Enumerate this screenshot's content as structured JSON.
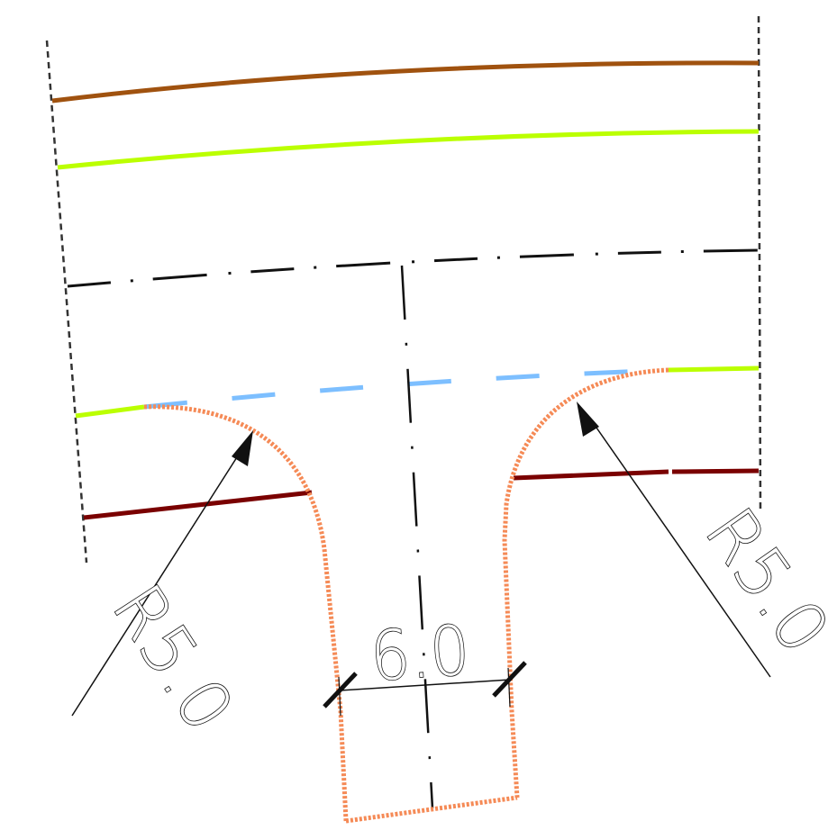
{
  "drawing": {
    "width_dimension": {
      "label": "6.0"
    },
    "radius_left": {
      "label": "R5.0"
    },
    "radius_right": {
      "label": "R5.0"
    }
  },
  "colors": {
    "road_edge_brown": "#a0520f",
    "lane_line_lime": "#bbff00",
    "centerline_black": "#111111",
    "curb_dark_red": "#7a0000",
    "stop_line_blue": "#7dbfff",
    "turn_curve_orange": "#f58a56",
    "extent_dashed": "#333333"
  }
}
